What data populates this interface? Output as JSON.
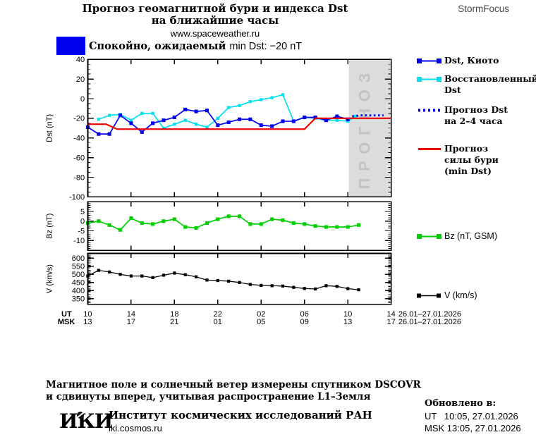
{
  "header": {
    "title_line1": "Прогноз геомагнитной бури и индекса Dst",
    "title_line2": "на ближайшие часы",
    "url": "www.spaceweather.ru",
    "brand": "StormFocus",
    "status_text_bold": "Спокойно, ожидаемый ",
    "status_text_rest": "min Dst: −20 nT",
    "status_color": "#0000f0"
  },
  "legend": {
    "dst_kyoto": "Dst, Киото",
    "restored_dst": "Восстановленный\nDst",
    "forecast_dst": "Прогноз Dst\nна 2–4 часа",
    "storm_strength": "Прогноз\nсилы бури\n(min Dst)",
    "bz": "Bz (nT, GSM)",
    "v": "V (km/s)"
  },
  "chart_data": {
    "type": "line",
    "title": "Прогноз геомагнитной бури и индекса Dst на ближайшие часы",
    "legend_position": "right",
    "grid": false,
    "x_axis": {
      "ut_row_label": "UT",
      "msk_row_label": "MSK",
      "ut_ticks": [
        "10",
        "14",
        "18",
        "22",
        "02",
        "06",
        "10",
        "14"
      ],
      "msk_ticks": [
        "13",
        "17",
        "21",
        "01",
        "05",
        "09",
        "13",
        "17"
      ],
      "date_range_ut": "26.01–27.01.2026",
      "date_range_msk": "26.01–27.01.2026",
      "hours_range": [
        10,
        38
      ],
      "tick_step_hours": 4
    },
    "panels": [
      {
        "id": "dst",
        "ylabel": "Dst (nT)",
        "ylim": [
          -100,
          40
        ],
        "yticks": [
          40,
          20,
          0,
          -20,
          -40,
          -60,
          -80,
          -100
        ],
        "minor_step": 5,
        "forecast_region": {
          "label": "П Р О Г Н О З",
          "start_hour": 34.1,
          "end_hour": 38,
          "fill": "#dcdcdc",
          "text_color": "#c3c3c3"
        },
        "series": [
          {
            "id": "restored-dst",
            "name": "Восстановленный Dst",
            "color": "#00e0ee",
            "style": "solid",
            "width": 2,
            "marker": true,
            "marker_size": 5,
            "x": [
              11,
              12,
              13,
              14,
              15,
              16,
              17,
              18,
              19,
              20,
              21,
              22,
              23,
              24,
              25,
              26,
              27,
              28,
              29,
              30,
              31,
              32,
              33,
              34,
              34.7
            ],
            "y": [
              -21,
              -17,
              -16,
              -22,
              -15,
              -15,
              -30,
              -26,
              -22,
              -26,
              -29,
              -20,
              -9,
              -7,
              -3,
              -1,
              1,
              4,
              -23,
              -19,
              -20,
              -22,
              -22,
              -23,
              -18
            ]
          },
          {
            "id": "dst-kyoto",
            "name": "Dst, Киото",
            "color": "#0000ee",
            "style": "solid",
            "width": 2,
            "marker": true,
            "marker_size": 6,
            "x": [
              10,
              11,
              12,
              13,
              14,
              15,
              16,
              17,
              18,
              19,
              20,
              21,
              22,
              23,
              24,
              25,
              26,
              27,
              28,
              29,
              30,
              31,
              32,
              33,
              34
            ],
            "y": [
              -29,
              -36,
              -36,
              -17,
              -25,
              -34,
              -25,
              -22,
              -19,
              -11,
              -13,
              -12,
              -27,
              -24,
              -21,
              -21,
              -27,
              -28,
              -23,
              -23,
              -19,
              -19,
              -22,
              -18,
              -21
            ]
          },
          {
            "id": "forecast-dst",
            "name": "Прогноз Dst на 2–4 часа",
            "color": "#0000ee",
            "style": "dotted",
            "width": 3.5,
            "marker": false,
            "x": [
              34.4,
              35.2,
              37.3
            ],
            "y": [
              -18,
              -17,
              -17
            ]
          },
          {
            "id": "storm-strength",
            "name": "Прогноз силы бури (min Dst)",
            "color": "#ee0000",
            "style": "solid",
            "width": 2.5,
            "marker": false,
            "x": [
              10,
              11.7,
              12.7,
              30,
              31,
              38
            ],
            "y": [
              -26,
              -26,
              -31,
              -31,
              -20,
              -20
            ]
          }
        ]
      },
      {
        "id": "bz",
        "ylabel": "Bz (nT)",
        "ylim": [
          -15,
          10
        ],
        "yticks": [
          5,
          0,
          -5,
          -10
        ],
        "minor_step": 1,
        "series": [
          {
            "id": "bz",
            "name": "Bz (nT, GSM)",
            "color": "#00cf00",
            "style": "solid",
            "width": 2,
            "marker": true,
            "marker_size": 6,
            "x": [
              10,
              11,
              12,
              13,
              14,
              15,
              16,
              17,
              18,
              19,
              20,
              21,
              22,
              23,
              24,
              25,
              26,
              27,
              28,
              29,
              30,
              31,
              32,
              33,
              34,
              35
            ],
            "y": [
              -1,
              0,
              -2,
              -4.5,
              1.5,
              -1,
              -1.5,
              0,
              1,
              -3,
              -3.5,
              -1,
              1,
              2.5,
              2.5,
              -1.5,
              -1.5,
              1,
              0.5,
              -1,
              -1.5,
              -2.5,
              -3,
              -3,
              -3,
              -2
            ]
          }
        ]
      },
      {
        "id": "v",
        "ylabel": "V (km/s)",
        "ylim": [
          315,
          630
        ],
        "yticks": [
          600,
          550,
          500,
          450,
          400,
          350
        ],
        "minor_step": 10,
        "series": [
          {
            "id": "v",
            "name": "V (km/s)",
            "color": "#000000",
            "style": "solid",
            "width": 1.5,
            "marker": true,
            "marker_size": 5,
            "x": [
              10,
              11,
              12,
              13,
              14,
              15,
              16,
              17,
              18,
              19,
              20,
              21,
              22,
              23,
              24,
              25,
              26,
              27,
              28,
              29,
              30,
              31,
              32,
              33,
              34,
              35
            ],
            "y": [
              490,
              525,
              515,
              500,
              490,
              490,
              480,
              495,
              508,
              498,
              485,
              465,
              462,
              458,
              450,
              438,
              432,
              430,
              428,
              420,
              413,
              410,
              430,
              426,
              412,
              405
            ]
          }
        ]
      }
    ]
  },
  "footer": {
    "note_line1": "Магнитное поле и солнечный ветер измерены спутником DSCOVR",
    "note_line2": "и сдвинуты вперед, учитывая распространение L1–Земля",
    "logo": "ИКИ",
    "institute": "Институт космических исследований РАН",
    "site": "iki.cosmos.ru",
    "updated_label": "Обновлено в:",
    "updated_ut": "UT   10:05, 27.01.2026",
    "updated_msk": "MSK 13:05, 27.01.2026"
  }
}
